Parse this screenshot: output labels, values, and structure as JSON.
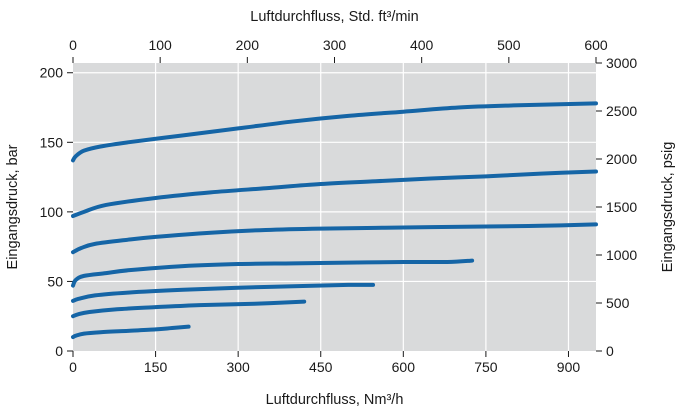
{
  "chart_data": {
    "type": "line",
    "grid": true,
    "legend": "none",
    "colors": {
      "background": "#d9dadb",
      "grid": "#ffffff",
      "series": "#1565a6",
      "text": "#1a1a1a"
    },
    "x_bottom": {
      "label": "Luftdurchfluss, Nm³/h",
      "range": [
        0,
        950
      ],
      "ticks": [
        0,
        150,
        300,
        450,
        600,
        750,
        900
      ],
      "tick_labels": [
        "0",
        "150",
        "300",
        "450",
        "600",
        "750",
        "900"
      ]
    },
    "x_top": {
      "label": "Luftdurchfluss, Std. ft³/min",
      "range": [
        0,
        600
      ],
      "ticks": [
        0,
        100,
        200,
        300,
        400,
        500,
        600
      ],
      "tick_labels": [
        "0",
        "100",
        "200",
        "300",
        "400",
        "500",
        "600"
      ]
    },
    "y_left": {
      "label": "Eingangsdruck, bar",
      "range": [
        0,
        207
      ],
      "ticks": [
        0,
        50,
        100,
        150,
        200
      ],
      "tick_labels": [
        "0",
        "50",
        "100",
        "150",
        "200"
      ]
    },
    "y_right": {
      "label": "Eingangsdruck, psig",
      "range": [
        0,
        3000
      ],
      "ticks": [
        0,
        500,
        1000,
        1500,
        2000,
        2500,
        3000
      ],
      "tick_labels": [
        "0",
        "500",
        "1000",
        "1500",
        "2000",
        "2500",
        "3000"
      ]
    },
    "series": [
      {
        "points": [
          [
            0,
            10
          ],
          [
            5,
            11
          ],
          [
            20,
            12.5
          ],
          [
            50,
            13.5
          ],
          [
            100,
            14.5
          ],
          [
            150,
            15.5
          ],
          [
            180,
            16.5
          ],
          [
            210,
            17.5
          ]
        ]
      },
      {
        "points": [
          [
            0,
            25
          ],
          [
            10,
            26.5
          ],
          [
            30,
            28
          ],
          [
            80,
            30
          ],
          [
            150,
            31.5
          ],
          [
            230,
            33
          ],
          [
            330,
            34
          ],
          [
            420,
            35.5
          ]
        ]
      },
      {
        "points": [
          [
            0,
            36
          ],
          [
            10,
            37.5
          ],
          [
            40,
            40
          ],
          [
            100,
            42
          ],
          [
            200,
            44
          ],
          [
            300,
            45.5
          ],
          [
            400,
            46.5
          ],
          [
            500,
            47.5
          ],
          [
            545,
            47.5
          ]
        ]
      },
      {
        "points": [
          [
            0,
            47
          ],
          [
            5,
            51
          ],
          [
            20,
            54
          ],
          [
            60,
            56
          ],
          [
            100,
            58
          ],
          [
            200,
            61
          ],
          [
            300,
            62.5
          ],
          [
            400,
            63
          ],
          [
            500,
            63.5
          ],
          [
            600,
            64
          ],
          [
            680,
            64
          ],
          [
            725,
            65
          ]
        ]
      },
      {
        "points": [
          [
            0,
            71
          ],
          [
            15,
            74
          ],
          [
            40,
            77
          ],
          [
            100,
            80
          ],
          [
            150,
            82
          ],
          [
            250,
            85
          ],
          [
            350,
            87
          ],
          [
            450,
            88
          ],
          [
            550,
            88.5
          ],
          [
            650,
            89
          ],
          [
            750,
            89.5
          ],
          [
            850,
            90
          ],
          [
            950,
            91
          ]
        ]
      },
      {
        "points": [
          [
            0,
            97
          ],
          [
            20,
            100
          ],
          [
            60,
            105
          ],
          [
            150,
            110
          ],
          [
            250,
            114
          ],
          [
            350,
            117
          ],
          [
            450,
            120
          ],
          [
            550,
            122
          ],
          [
            650,
            124
          ],
          [
            750,
            125.5
          ],
          [
            850,
            127.5
          ],
          [
            950,
            129
          ]
        ]
      },
      {
        "points": [
          [
            0,
            137
          ],
          [
            5,
            140
          ],
          [
            20,
            144
          ],
          [
            50,
            147
          ],
          [
            100,
            150
          ],
          [
            200,
            155
          ],
          [
            300,
            160
          ],
          [
            400,
            165
          ],
          [
            500,
            169
          ],
          [
            600,
            172
          ],
          [
            700,
            175
          ],
          [
            800,
            176.5
          ],
          [
            950,
            178
          ]
        ]
      }
    ]
  }
}
